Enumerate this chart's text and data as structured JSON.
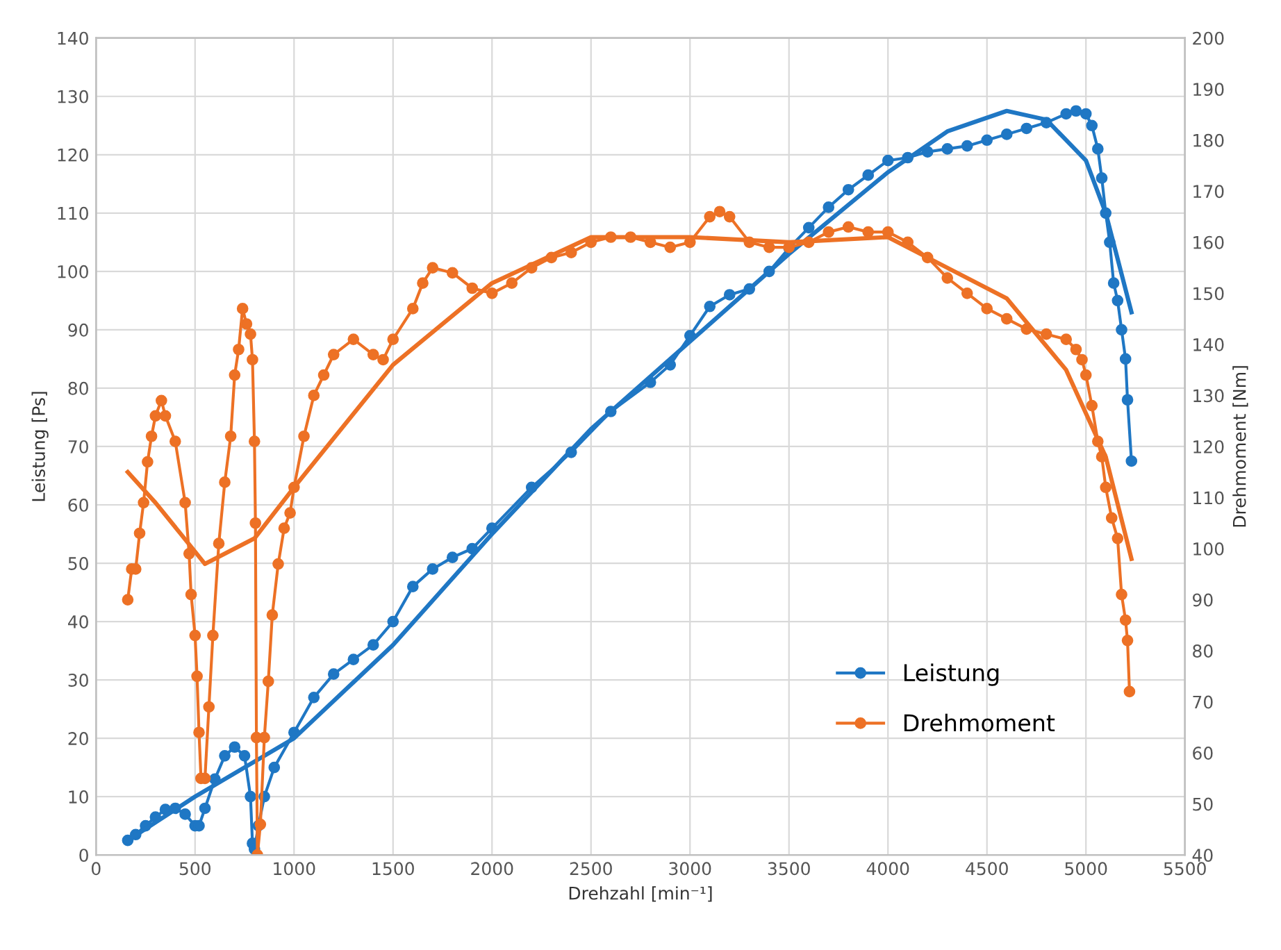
{
  "chart_data": {
    "type": "line",
    "xlabel": "Drehzahl [min⁻¹]",
    "ylabel": "Leistung [Ps]",
    "y2label": "Drehmoment [Nm]",
    "xlim": [
      0,
      5500
    ],
    "xticks": [
      0,
      500,
      1000,
      1500,
      2000,
      2500,
      3000,
      3500,
      4000,
      4500,
      5000,
      5500
    ],
    "ylim": [
      0,
      140
    ],
    "yticks": [
      0,
      10,
      20,
      30,
      40,
      50,
      60,
      70,
      80,
      90,
      100,
      110,
      120,
      130,
      140
    ],
    "y2lim": [
      40,
      200
    ],
    "y2ticks": [
      40,
      50,
      60,
      70,
      80,
      90,
      100,
      110,
      120,
      130,
      140,
      150,
      160,
      170,
      180,
      190,
      200
    ],
    "grid": true,
    "legend": "lower right",
    "marker": "circle",
    "line_style": "solid",
    "series": [
      {
        "name": "Leistung",
        "color": "#1f77c4",
        "x": [
          160,
          200,
          250,
          300,
          350,
          400,
          450,
          500,
          520,
          550,
          600,
          650,
          700,
          750,
          780,
          790,
          800,
          820,
          850,
          900,
          1000,
          1100,
          1200,
          1300,
          1400,
          1500,
          1600,
          1700,
          1800,
          1900,
          2000,
          2200,
          2400,
          2600,
          2800,
          2900,
          3000,
          3100,
          3200,
          3300,
          3400,
          3500,
          3600,
          3700,
          3800,
          3900,
          4000,
          4100,
          4200,
          4300,
          4400,
          4500,
          4600,
          4700,
          4800,
          4900,
          4950,
          5000,
          5030,
          5060,
          5080,
          5100,
          5120,
          5140,
          5160,
          5180,
          5200,
          5210,
          5230
        ],
        "values": [
          2.5,
          3.5,
          5,
          6.5,
          7.8,
          8,
          7,
          5,
          5,
          8,
          13,
          17,
          18.5,
          17,
          10,
          2,
          1,
          5,
          10,
          15,
          21,
          27,
          31,
          33.5,
          36,
          40,
          46,
          49,
          51,
          52.5,
          56,
          63,
          69,
          76,
          81,
          84,
          89,
          94,
          96,
          97,
          100,
          104,
          107.5,
          111,
          114,
          116.5,
          119,
          119.5,
          120.5,
          121,
          121.5,
          122.5,
          123.5,
          124.5,
          125.5,
          127,
          127.5,
          127,
          125,
          121,
          116,
          110,
          105,
          98,
          95,
          90,
          85,
          78,
          67.5
        ]
      },
      {
        "name": "Drehmoment",
        "color": "#ed7125",
        "axis": "y2",
        "x": [
          160,
          180,
          200,
          220,
          240,
          260,
          280,
          300,
          330,
          350,
          400,
          450,
          470,
          480,
          500,
          510,
          520,
          530,
          550,
          570,
          590,
          620,
          650,
          680,
          700,
          720,
          740,
          760,
          780,
          790,
          800,
          805,
          810,
          815,
          830,
          850,
          870,
          890,
          920,
          950,
          980,
          1000,
          1050,
          1100,
          1150,
          1200,
          1300,
          1400,
          1450,
          1500,
          1600,
          1650,
          1700,
          1800,
          1900,
          2000,
          2100,
          2200,
          2300,
          2400,
          2500,
          2600,
          2700,
          2800,
          2900,
          3000,
          3100,
          3150,
          3200,
          3300,
          3400,
          3500,
          3600,
          3700,
          3800,
          3900,
          4000,
          4100,
          4200,
          4300,
          4400,
          4500,
          4600,
          4700,
          4800,
          4900,
          4950,
          4980,
          5000,
          5030,
          5060,
          5080,
          5100,
          5130,
          5160,
          5180,
          5200,
          5210,
          5220
        ],
        "values": [
          90,
          96,
          96,
          103,
          109,
          117,
          122,
          126,
          129,
          126,
          121,
          109,
          99,
          91,
          83,
          75,
          64,
          55,
          55,
          69,
          83,
          101,
          113,
          122,
          134,
          139,
          147,
          144,
          142,
          137,
          121,
          105,
          63,
          40,
          46,
          63,
          74,
          87,
          97,
          104,
          107,
          112,
          122,
          130,
          134,
          138,
          141,
          138,
          137,
          141,
          147,
          152,
          155,
          154,
          151,
          150,
          152,
          155,
          157,
          158,
          160,
          161,
          161,
          160,
          159,
          160,
          165,
          166,
          165,
          160,
          159,
          159,
          160,
          162,
          163,
          162,
          162,
          160,
          157,
          153,
          150,
          147,
          145,
          143,
          142,
          141,
          139,
          137,
          134,
          128,
          121,
          118,
          112,
          106,
          102,
          91,
          86,
          82,
          72
        ]
      },
      {
        "type": "line",
        "color": "#1f77c4",
        "marker": "none",
        "x": [
          160,
          500,
          1000,
          1500,
          2000,
          2500,
          3000,
          3500,
          4000,
          4300,
          4600,
          4800,
          5000,
          5100,
          5230
        ],
        "values": [
          2.5,
          10,
          20,
          36,
          55,
          73,
          88,
          103,
          117,
          124,
          127.5,
          126,
          119,
          110,
          93
        ]
      },
      {
        "type": "line",
        "color": "#ed7125",
        "marker": "none",
        "axis": "y2",
        "x": [
          160,
          300,
          550,
          800,
          1000,
          1500,
          2000,
          2500,
          3000,
          3500,
          4000,
          4300,
          4600,
          4900,
          5100,
          5230
        ],
        "values": [
          115,
          109,
          97,
          102,
          112,
          136,
          152,
          161,
          161,
          160,
          161,
          155,
          149,
          135,
          118,
          98
        ]
      }
    ]
  }
}
